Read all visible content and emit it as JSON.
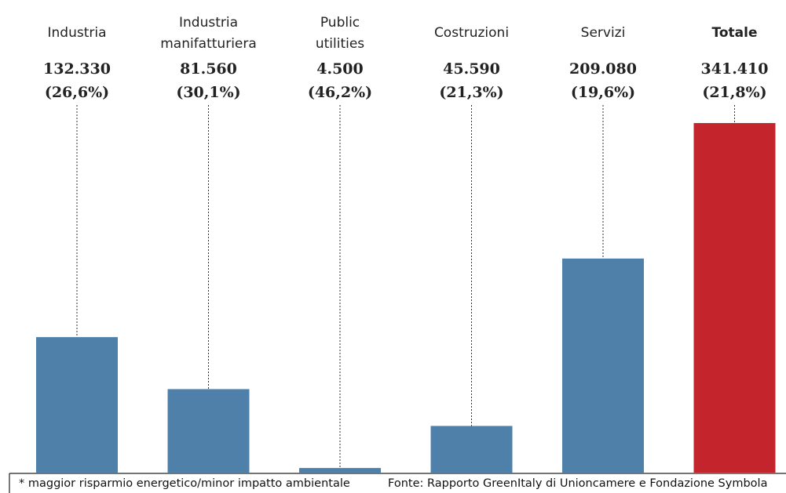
{
  "chart_data": {
    "type": "bar",
    "categories": [
      [
        "Industria"
      ],
      [
        "Industria",
        "manifatturiera"
      ],
      [
        "Public",
        "utilities"
      ],
      [
        "Costruzioni"
      ],
      [
        "Servizi"
      ],
      [
        "Totale"
      ]
    ],
    "values": [
      132330,
      81560,
      4500,
      45590,
      209080,
      341410
    ],
    "value_labels": [
      "132.330",
      "81.560",
      "4.500",
      "45.590",
      "209.080",
      "341.410"
    ],
    "share_labels": [
      "(26,6%)",
      "(30,1%)",
      "(46,2%)",
      "(21,3%)",
      "(19,6%)",
      "(21,8%)"
    ],
    "colors": [
      "#4e80aa",
      "#4e80aa",
      "#4e80aa",
      "#4e80aa",
      "#4e80aa",
      "#c4252c"
    ],
    "footnote": "* maggior risparmio energetico/minor impatto ambientale",
    "source": "Fonte: Rapporto GreenItaly di Unioncamere e Fondazione Symbola"
  }
}
